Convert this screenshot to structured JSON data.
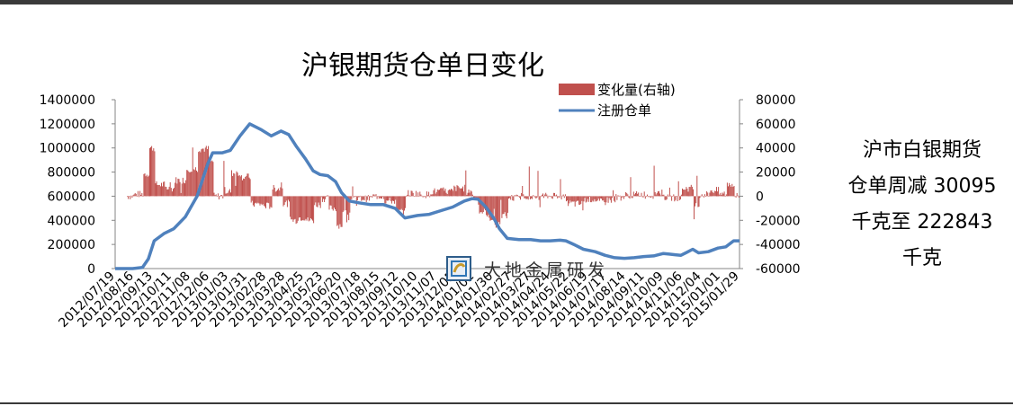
{
  "side_note": {
    "lines": [
      "沪市白银期货",
      "仓单周减 30095",
      "千克至  222843",
      "千克"
    ]
  },
  "watermark": {
    "text": "大地金属研发",
    "logo_icon": "dadi-logo-icon"
  },
  "colors": {
    "bar": "#c0504d",
    "line": "#4f81bd",
    "accent_bar": "#3a3a3a"
  },
  "chart_data": {
    "type": "bar+line",
    "title": "沪银期货仓单日变化",
    "left_axis": {
      "min": 0,
      "max": 1400000,
      "ticks": [
        "1400000",
        "1200000",
        "1000000",
        "800000",
        "600000",
        "400000",
        "200000",
        "0"
      ]
    },
    "right_axis": {
      "min": -60000,
      "max": 80000,
      "ticks": [
        "80000",
        "60000",
        "40000",
        "20000",
        "0",
        "-20000",
        "-40000",
        "-60000"
      ]
    },
    "x_tick_labels": [
      "2012/07/19",
      "2012/08/16",
      "2012/09/13",
      "2012/10/11",
      "2012/11/08",
      "2012/12/06",
      "2013/01/03",
      "2013/01/31",
      "2013/02/28",
      "2013/03/28",
      "2013/04/25",
      "2013/05/23",
      "2013/06/20",
      "2013/07/18",
      "2013/08/15",
      "2013/09/12",
      "2013/10/10",
      "2013/11/07",
      "2013/12/05",
      "2014/01/02",
      "2014/01/30",
      "2014/02/27",
      "2014/03/27",
      "2014/04/24",
      "2014/05/22",
      "2014/06/19",
      "2014/07/17",
      "2014/08/14",
      "2014/09/11",
      "2014/10/09",
      "2014/11/06",
      "2014/12/04",
      "2015/01/01",
      "2015/01/29"
    ],
    "legend": [
      {
        "name": "变化量(右轴)",
        "kind": "bar"
      },
      {
        "name": "注册仓单",
        "kind": "line"
      }
    ],
    "legend_position": "top-right",
    "registered_receipts_points": [
      [
        0,
        0
      ],
      [
        18,
        0
      ],
      [
        28,
        10000
      ],
      [
        34,
        80000
      ],
      [
        40,
        230000
      ],
      [
        50,
        290000
      ],
      [
        60,
        330000
      ],
      [
        72,
        430000
      ],
      [
        84,
        600000
      ],
      [
        95,
        870000
      ],
      [
        100,
        960000
      ],
      [
        110,
        960000
      ],
      [
        118,
        980000
      ],
      [
        128,
        1100000
      ],
      [
        138,
        1200000
      ],
      [
        150,
        1150000
      ],
      [
        160,
        1100000
      ],
      [
        170,
        1140000
      ],
      [
        178,
        1110000
      ],
      [
        186,
        1010000
      ],
      [
        195,
        910000
      ],
      [
        203,
        810000
      ],
      [
        210,
        780000
      ],
      [
        218,
        770000
      ],
      [
        226,
        720000
      ],
      [
        232,
        630000
      ],
      [
        240,
        560000
      ],
      [
        250,
        545000
      ],
      [
        262,
        530000
      ],
      [
        275,
        530000
      ],
      [
        287,
        500000
      ],
      [
        297,
        420000
      ],
      [
        310,
        440000
      ],
      [
        322,
        450000
      ],
      [
        334,
        480000
      ],
      [
        346,
        510000
      ],
      [
        358,
        560000
      ],
      [
        366,
        580000
      ],
      [
        372,
        575000
      ],
      [
        380,
        510000
      ],
      [
        388,
        420000
      ],
      [
        394,
        330000
      ],
      [
        402,
        250000
      ],
      [
        414,
        240000
      ],
      [
        426,
        240000
      ],
      [
        436,
        230000
      ],
      [
        446,
        230000
      ],
      [
        456,
        235000
      ],
      [
        462,
        230000
      ],
      [
        470,
        200000
      ],
      [
        480,
        160000
      ],
      [
        492,
        140000
      ],
      [
        502,
        110000
      ],
      [
        512,
        90000
      ],
      [
        522,
        85000
      ],
      [
        532,
        90000
      ],
      [
        542,
        100000
      ],
      [
        552,
        105000
      ],
      [
        562,
        125000
      ],
      [
        568,
        120000
      ],
      [
        574,
        115000
      ],
      [
        580,
        110000
      ],
      [
        586,
        135000
      ],
      [
        592,
        160000
      ],
      [
        598,
        130000
      ],
      [
        608,
        140000
      ],
      [
        618,
        170000
      ],
      [
        626,
        180000
      ],
      [
        634,
        230000
      ],
      [
        640,
        230000
      ]
    ],
    "daily_change_envelope": {
      "positive_max_right_axis": 58000,
      "negative_min_right_axis": -42000
    }
  }
}
